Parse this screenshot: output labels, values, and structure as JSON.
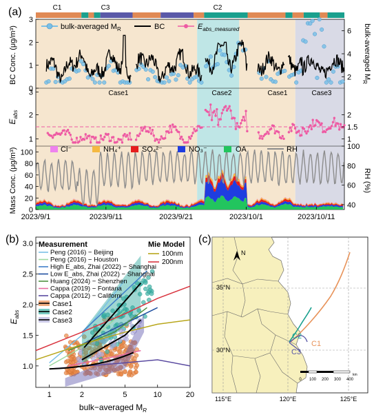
{
  "colors": {
    "case1": "#f6e6cf",
    "case2": "#bfe6e6",
    "case3": "#d9dae6",
    "bulkMR": "#7ac0e6",
    "bc": "#000000",
    "eabs": "#ee5aa3",
    "cl": "#ee82ee",
    "nh4": "#f5b942",
    "so4": "#e61d1d",
    "no3": "#1f3de0",
    "oa": "#22c55e",
    "rh": "#8c8c8c",
    "bar_c1": "#e08a55",
    "bar_c2": "#1aa08e",
    "bar_c3": "#5a59a8",
    "mie100": "#b8a61a",
    "mie200": "#d9343f",
    "case2line": "#1f7f5f",
    "case3line": "#c96a2d",
    "map_land": "#f7f0bd",
    "map_sea": "#ffffff"
  },
  "panel_a": {
    "label": "(a)",
    "cluster_labels": [
      "C1",
      "C3",
      "C2"
    ],
    "legend": {
      "bulk_mr": "bulk-averaged M",
      "bulk_mr_sub": "R",
      "bc": "BC",
      "eabs": "E",
      "eabs_sub": "abs_measured"
    },
    "ylabel_bc": "BC Conc. (μg/m³)",
    "ylabel_mr": "bulk-averaged M",
    "ylabel_mr_sub": "R",
    "ylabel_eabs": "E",
    "ylabel_eabs_sub": "abs",
    "ylabel_mass": "Mass Conc. (μg/m³)",
    "ylabel_rh": "RH (%)",
    "case_labels": [
      "Case1",
      "Case2",
      "Case1",
      "Case3"
    ],
    "species_legend": [
      "Cl⁻",
      "NH₄⁺",
      "SO₄²⁻",
      "NO₃⁻",
      "OA",
      "RH"
    ],
    "x_ticks": [
      "2023/9/1",
      "2023/9/11",
      "2023/9/21",
      "2023/10/1",
      "2023/10/11"
    ],
    "bc_ticks": [
      "0",
      "1",
      "2",
      "3"
    ],
    "mr_ticks": [
      "2",
      "4",
      "6"
    ],
    "eabs_ticks": [
      "1",
      "2",
      "3"
    ],
    "eabs_right_ticks": [
      "1",
      "1.5",
      "2"
    ],
    "mass_ticks": [
      "0",
      "20",
      "40",
      "60",
      "80",
      "100"
    ],
    "rh_ticks": [
      "40",
      "60",
      "80",
      "100"
    ]
  },
  "panel_b": {
    "label": "(b)",
    "measurement_title": "Measurement",
    "mie_title": "Mie Model",
    "measurements": [
      {
        "name": "Peng (2016) − Beijing",
        "color": "#7ac0e6"
      },
      {
        "name": "Peng (2016) − Houston",
        "color": "#9ed9a0"
      },
      {
        "name": "High E_abs, Zhai (2022) − Shanghai",
        "color": "#3f7fc9"
      },
      {
        "name": "Low E_abs, Zhai (2022) − Shanghai",
        "color": "#1f4fa0"
      },
      {
        "name": "Huang (2024) − Shenzhen",
        "color": "#4f8f3f"
      },
      {
        "name": "Cappa (2019) − Fontana",
        "color": "#e86aa0"
      },
      {
        "name": "Cappa (2012) − Californi",
        "color": "#5a4aa0"
      }
    ],
    "mie": [
      {
        "name": "100nm",
        "color": "#b8a61a"
      },
      {
        "name": "200nm",
        "color": "#d9343f"
      }
    ],
    "cases": [
      "Case1",
      "Case2",
      "Case3"
    ],
    "ylabel": "E",
    "ylabel_sub": "abs",
    "xlabel": "bulk−averaged M",
    "xlabel_sub": "R",
    "x_ticks": [
      "1",
      "2",
      "5",
      "10",
      "20"
    ],
    "y_ticks": [
      "1.0",
      "1.5",
      "2.0",
      "2.5",
      "3.0"
    ]
  },
  "panel_c": {
    "label": "(c)",
    "north": "N",
    "lat_labels": [
      "35°N",
      "30°N"
    ],
    "lon_labels": [
      "115°E",
      "120°E",
      "125°E"
    ],
    "traj_labels": [
      "C1",
      "C2",
      "C3"
    ],
    "scale_labels": [
      "0",
      "100",
      "200",
      "300",
      "400"
    ],
    "scale_unit": "km"
  },
  "chart_data": [
    {
      "type": "line",
      "panel": "a-top",
      "x_range": [
        "2023/9/1",
        "2023/10/15"
      ],
      "ylim_left": [
        0,
        3
      ],
      "ylim_right": [
        1,
        7
      ],
      "series": [
        {
          "name": "BC",
          "axis": "left"
        },
        {
          "name": "bulk-averaged M_R",
          "axis": "right"
        }
      ],
      "cases": [
        {
          "name": "Case1",
          "start": "2023/9/1",
          "end": "2023/9/24"
        },
        {
          "name": "Case2",
          "start": "2023/9/24",
          "end": "2023/9/30"
        },
        {
          "name": "Case1",
          "start": "2023/9/30",
          "end": "2023/10/8"
        },
        {
          "name": "Case3",
          "start": "2023/10/8",
          "end": "2023/10/15"
        }
      ]
    },
    {
      "type": "scatter",
      "panel": "a-middle",
      "series": [
        {
          "name": "E_abs_measured"
        }
      ],
      "ylim": [
        0.7,
        3.1
      ],
      "reference_line": 1.5
    },
    {
      "type": "area",
      "panel": "a-bottom",
      "series": [
        {
          "name": "Cl-"
        },
        {
          "name": "NH4+"
        },
        {
          "name": "SO4 2-"
        },
        {
          "name": "NO3-"
        },
        {
          "name": "OA"
        },
        {
          "name": "RH"
        }
      ],
      "ylim_left": [
        0,
        110
      ],
      "ylim_right": [
        35,
        100
      ]
    },
    {
      "type": "scatter",
      "panel": "b",
      "xscale": "log",
      "xlim": [
        0.75,
        20
      ],
      "ylim": [
        0.65,
        3.1
      ],
      "series": [
        {
          "name": "Peng (2016) - Beijing",
          "x": [
            1,
            2,
            5
          ],
          "y": [
            1.05,
            1.5,
            2.4
          ]
        },
        {
          "name": "Peng (2016) - Houston",
          "x": [
            1,
            2,
            5
          ],
          "y": [
            1.0,
            1.3,
            1.9
          ]
        },
        {
          "name": "High E_abs, Zhai (2022) - Shanghai",
          "x": [
            2,
            8
          ],
          "y": [
            1.55,
            2.55
          ]
        },
        {
          "name": "Low E_abs, Zhai (2022) - Shanghai",
          "x": [
            2,
            10
          ],
          "y": [
            1.35,
            1.95
          ]
        },
        {
          "name": "Huang (2024) - Shenzhen",
          "x": [
            1.5,
            4,
            8
          ],
          "y": [
            1.25,
            1.55,
            1.95
          ]
        },
        {
          "name": "Cappa (2019) - Fontana",
          "x": [
            1.5,
            4,
            7
          ],
          "y": [
            1.0,
            1.15,
            1.25
          ]
        },
        {
          "name": "Cappa (2012) - Californi",
          "x": [
            1,
            5,
            10,
            20
          ],
          "y": [
            0.95,
            1.05,
            1.1,
            1.0
          ]
        },
        {
          "name": "100nm",
          "x": [
            0.75,
            2,
            5,
            10,
            20
          ],
          "y": [
            1.1,
            1.35,
            1.55,
            1.68,
            1.75
          ]
        },
        {
          "name": "200nm",
          "x": [
            0.75,
            2,
            5,
            10,
            20
          ],
          "y": [
            1.25,
            1.55,
            1.85,
            2.1,
            2.3
          ]
        },
        {
          "name": "Case2",
          "x": [
            2.1,
            7
          ],
          "y": [
            1.3,
            2.35
          ]
        },
        {
          "name": "Case3",
          "x": [
            2,
            5,
            7
          ],
          "y": [
            1.1,
            1.5,
            1.75
          ]
        }
      ]
    }
  ]
}
